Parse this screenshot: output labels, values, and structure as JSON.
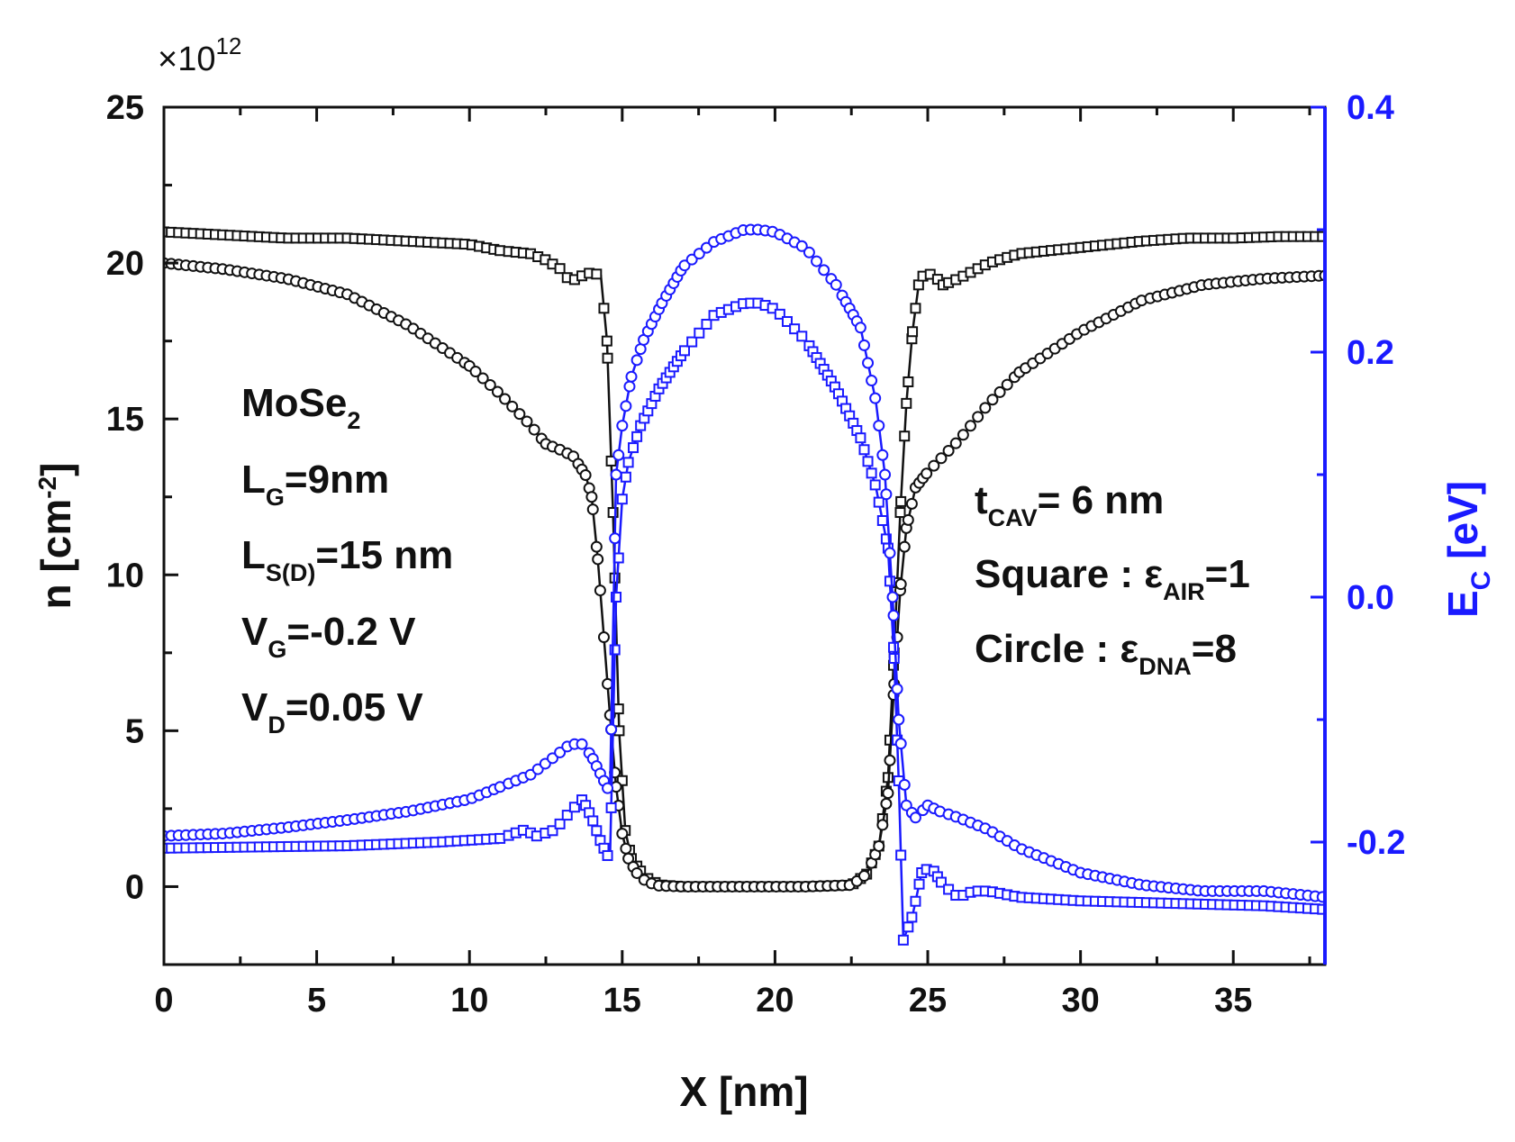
{
  "colors": {
    "black_series": "#111111",
    "blue_series": "#1a1aff",
    "right_axis": "#1a1aff"
  },
  "chart_data": {
    "type": "scatter",
    "title": "",
    "xlabel": "X [nm]",
    "ylabel": {
      "main": "n [cm",
      "sup": "-2",
      "close": "]"
    },
    "y2label": {
      "main": "E",
      "sub": "C",
      "rest": " [eV]"
    },
    "left_multiplier": {
      "times": "×10",
      "exp": "12"
    },
    "xlim": [
      0,
      38
    ],
    "ylim": [
      -2.5,
      25
    ],
    "y2lim": [
      -0.3,
      0.4
    ],
    "xticks": [
      0,
      5,
      10,
      15,
      20,
      25,
      30,
      35
    ],
    "xtick_labels": [
      "0",
      "5",
      "10",
      "15",
      "20",
      "25",
      "30",
      "35"
    ],
    "yticks": [
      0,
      5,
      10,
      15,
      20,
      25
    ],
    "ytick_labels": [
      "0",
      "5",
      "10",
      "15",
      "20",
      "25"
    ],
    "y2ticks": [
      -0.2,
      0.0,
      0.2,
      0.4
    ],
    "y2tick_labels": [
      "-0.2",
      "0.0",
      "0.2",
      "0.4"
    ],
    "annotations_left": {
      "material": {
        "main": "MoSe",
        "sub": "2",
        "rest": ""
      },
      "gate_length": {
        "main": "L",
        "sub": "G",
        "rest": "=9nm"
      },
      "sd_length": {
        "main": "L",
        "sub": "S(D)",
        "rest": "=15 nm"
      },
      "gate_voltage": {
        "main": "V",
        "sub": "G",
        "rest": "=-0.2 V"
      },
      "drain_voltage": {
        "main": "V",
        "sub": "D",
        "rest": "=0.05 V"
      }
    },
    "annotations_right": {
      "cavity": {
        "main": "t",
        "sub": "CAV",
        "rest": "= 6 nm"
      },
      "square": {
        "main": "Square : ε",
        "sub": "AIR",
        "rest": "=1"
      },
      "circle": {
        "main": "Circle : ε",
        "sub": "DNA",
        "rest": "=8"
      }
    },
    "series": [
      {
        "name": "n, Square (ε_AIR=1)",
        "axis": "left",
        "marker": "square",
        "color": "#111111",
        "x": [
          0,
          2,
          4,
          6,
          8,
          10,
          11,
          12,
          12.5,
          13,
          13.3,
          13.7,
          14.0,
          14.3,
          14.5,
          14.7,
          14.9,
          15.1,
          15.3,
          15.6,
          15.9,
          16.3,
          17,
          19,
          21,
          22.5,
          23.0,
          23.4,
          23.7,
          23.9,
          24.1,
          24.3,
          24.5,
          24.7,
          24.9,
          25.2,
          25.5,
          26,
          27,
          28,
          30,
          32,
          33.5,
          35,
          36.5,
          38
        ],
        "y": [
          21.0,
          20.9,
          20.8,
          20.8,
          20.7,
          20.6,
          20.4,
          20.3,
          20.1,
          19.8,
          19.4,
          19.6,
          19.7,
          19.6,
          17.5,
          12.0,
          5.0,
          1.8,
          0.9,
          0.5,
          0.2,
          0.05,
          0.0,
          0.0,
          0.0,
          0.05,
          0.4,
          1.3,
          3.5,
          7.5,
          12.0,
          15.5,
          17.8,
          19.3,
          19.7,
          19.6,
          19.3,
          19.5,
          20.0,
          20.3,
          20.5,
          20.7,
          20.8,
          20.8,
          20.85,
          20.85
        ]
      },
      {
        "name": "n, Circle (ε_DNA=8)",
        "axis": "left",
        "marker": "circle",
        "color": "#111111",
        "x": [
          0,
          2,
          4,
          6,
          8,
          10,
          11,
          12,
          12.5,
          13,
          13.4,
          13.8,
          14.0,
          14.2,
          14.4,
          14.6,
          14.8,
          15.0,
          15.2,
          15.5,
          15.8,
          16.2,
          17,
          19,
          21,
          22.5,
          23.0,
          23.4,
          23.7,
          23.9,
          24.1,
          24.3,
          24.6,
          25,
          25.5,
          26,
          27,
          28,
          30,
          32,
          34,
          36,
          38
        ],
        "y": [
          20.0,
          19.8,
          19.5,
          19.0,
          18.0,
          16.7,
          15.8,
          14.8,
          14.2,
          14.0,
          13.8,
          13.2,
          12.5,
          10.5,
          8.0,
          5.5,
          3.2,
          1.7,
          0.9,
          0.4,
          0.15,
          0.03,
          0.0,
          0.0,
          0.0,
          0.05,
          0.4,
          1.3,
          3.0,
          6.5,
          9.5,
          11.5,
          12.8,
          13.3,
          13.8,
          14.3,
          15.5,
          16.5,
          17.8,
          18.8,
          19.3,
          19.5,
          19.6
        ]
      },
      {
        "name": "E_C, Square (ε_AIR=1)",
        "axis": "right",
        "marker": "square",
        "color": "#1a1aff",
        "x": [
          0,
          3,
          6,
          9,
          11,
          11.8,
          12.2,
          12.8,
          13.3,
          13.7,
          14.0,
          14.3,
          14.6,
          14.8,
          15.0,
          15.2,
          15.6,
          16.2,
          17,
          18,
          19,
          19.5,
          20,
          21,
          22,
          22.8,
          23.3,
          23.7,
          23.9,
          24.05,
          24.2,
          24.5,
          24.8,
          25.1,
          25.5,
          26,
          26.5,
          27,
          28,
          30,
          33,
          36,
          38
        ],
        "y": [
          -0.205,
          -0.204,
          -0.203,
          -0.2,
          -0.197,
          -0.19,
          -0.195,
          -0.19,
          -0.175,
          -0.165,
          -0.18,
          -0.2,
          -0.215,
          0.0,
          0.08,
          0.11,
          0.14,
          0.17,
          0.2,
          0.23,
          0.24,
          0.24,
          0.235,
          0.21,
          0.17,
          0.13,
          0.09,
          0.04,
          -0.05,
          -0.15,
          -0.28,
          -0.26,
          -0.225,
          -0.22,
          -0.235,
          -0.245,
          -0.24,
          -0.24,
          -0.245,
          -0.248,
          -0.25,
          -0.252,
          -0.255
        ]
      },
      {
        "name": "E_C, Circle (ε_DNA=8)",
        "axis": "right",
        "marker": "circle",
        "color": "#1a1aff",
        "x": [
          0,
          2,
          4,
          6,
          8,
          10,
          11,
          12,
          12.8,
          13.3,
          13.7,
          14.0,
          14.3,
          14.6,
          14.8,
          15.0,
          15.3,
          15.7,
          16.3,
          17,
          18,
          19,
          19.5,
          20,
          21,
          22,
          22.8,
          23.3,
          23.6,
          23.85,
          24.05,
          24.3,
          24.6,
          25.0,
          25.4,
          26,
          27,
          28,
          30,
          32,
          34,
          36,
          38
        ],
        "y": [
          -0.195,
          -0.193,
          -0.188,
          -0.182,
          -0.175,
          -0.165,
          -0.155,
          -0.145,
          -0.13,
          -0.12,
          -0.12,
          -0.13,
          -0.145,
          -0.16,
          0.1,
          0.14,
          0.18,
          0.21,
          0.24,
          0.27,
          0.29,
          0.3,
          0.3,
          0.298,
          0.285,
          0.255,
          0.22,
          0.16,
          0.1,
          0.0,
          -0.1,
          -0.17,
          -0.18,
          -0.17,
          -0.175,
          -0.18,
          -0.19,
          -0.205,
          -0.225,
          -0.235,
          -0.24,
          -0.24,
          -0.245
        ]
      }
    ]
  }
}
